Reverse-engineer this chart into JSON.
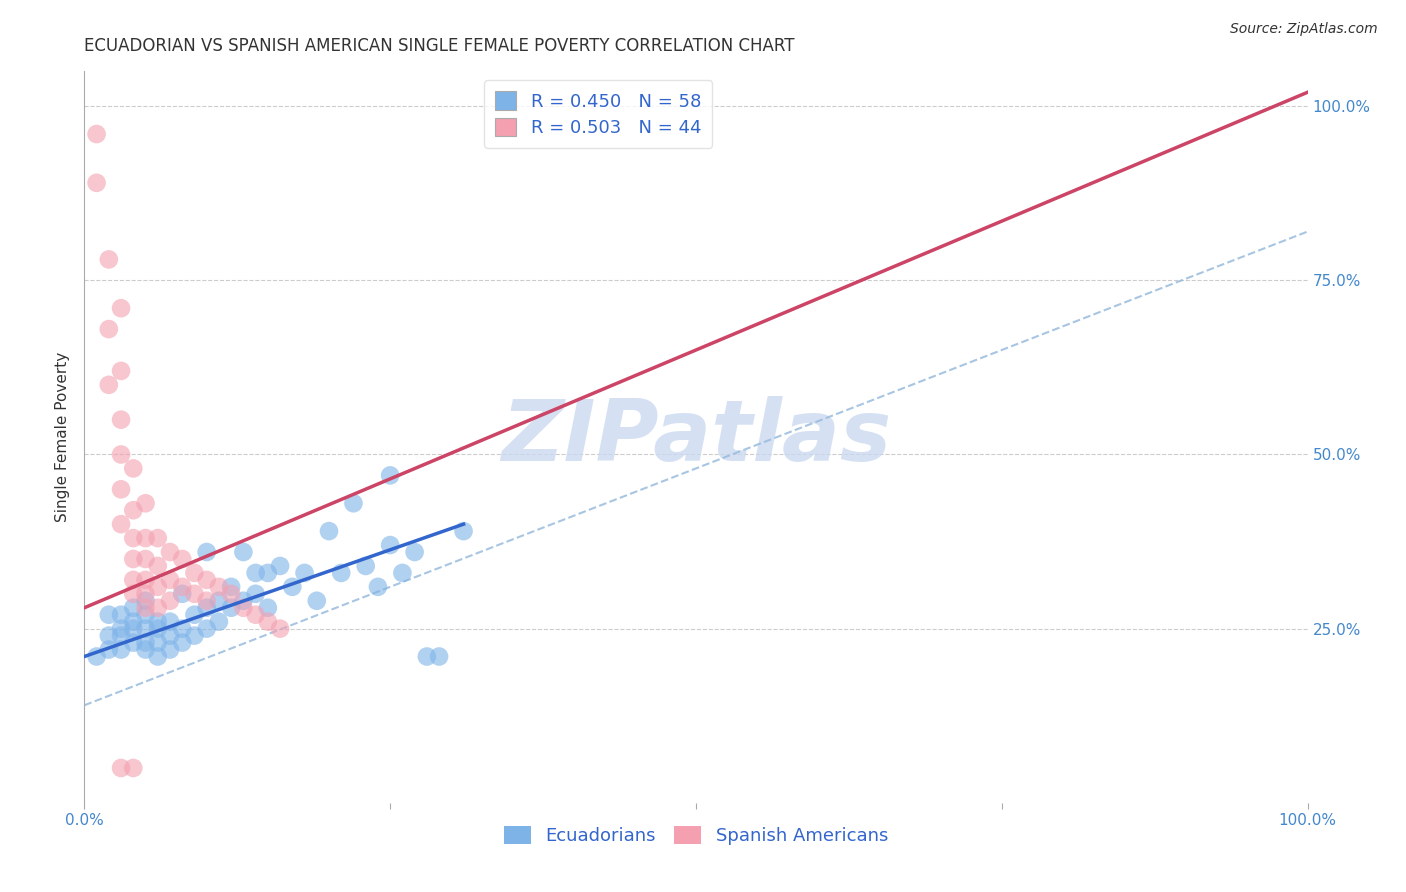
{
  "title": "ECUADORIAN VS SPANISH AMERICAN SINGLE FEMALE POVERTY CORRELATION CHART",
  "source": "Source: ZipAtlas.com",
  "ylabel": "Single Female Poverty",
  "xlim": [
    0,
    1
  ],
  "ylim": [
    0,
    1.05
  ],
  "xticks": [
    0,
    0.25,
    0.5,
    0.75,
    1.0
  ],
  "yticks": [
    0.25,
    0.5,
    0.75,
    1.0
  ],
  "xtick_labels": [
    "0.0%",
    "",
    "",
    "",
    "100.0%"
  ],
  "ytick_labels": [
    "25.0%",
    "50.0%",
    "75.0%",
    "100.0%"
  ],
  "blue_color": "#7EB3E8",
  "pink_color": "#F4A0B0",
  "legend_label_blue": "R = 0.450   N = 58",
  "legend_label_pink": "R = 0.503   N = 44",
  "bottom_legend_blue": "Ecuadorians",
  "bottom_legend_pink": "Spanish Americans",
  "watermark": "ZIPatlas",
  "watermark_color": "#C8D8F0",
  "blue_scatter": [
    [
      0.01,
      0.21
    ],
    [
      0.02,
      0.22
    ],
    [
      0.02,
      0.24
    ],
    [
      0.02,
      0.27
    ],
    [
      0.03,
      0.22
    ],
    [
      0.03,
      0.24
    ],
    [
      0.03,
      0.25
    ],
    [
      0.03,
      0.27
    ],
    [
      0.04,
      0.23
    ],
    [
      0.04,
      0.25
    ],
    [
      0.04,
      0.26
    ],
    [
      0.04,
      0.28
    ],
    [
      0.05,
      0.22
    ],
    [
      0.05,
      0.23
    ],
    [
      0.05,
      0.25
    ],
    [
      0.05,
      0.27
    ],
    [
      0.05,
      0.29
    ],
    [
      0.06,
      0.21
    ],
    [
      0.06,
      0.23
    ],
    [
      0.06,
      0.25
    ],
    [
      0.06,
      0.26
    ],
    [
      0.07,
      0.22
    ],
    [
      0.07,
      0.24
    ],
    [
      0.07,
      0.26
    ],
    [
      0.08,
      0.23
    ],
    [
      0.08,
      0.25
    ],
    [
      0.08,
      0.3
    ],
    [
      0.09,
      0.24
    ],
    [
      0.09,
      0.27
    ],
    [
      0.1,
      0.25
    ],
    [
      0.1,
      0.28
    ],
    [
      0.1,
      0.36
    ],
    [
      0.11,
      0.26
    ],
    [
      0.11,
      0.29
    ],
    [
      0.12,
      0.28
    ],
    [
      0.12,
      0.31
    ],
    [
      0.13,
      0.29
    ],
    [
      0.13,
      0.36
    ],
    [
      0.14,
      0.3
    ],
    [
      0.14,
      0.33
    ],
    [
      0.15,
      0.28
    ],
    [
      0.15,
      0.33
    ],
    [
      0.16,
      0.34
    ],
    [
      0.17,
      0.31
    ],
    [
      0.18,
      0.33
    ],
    [
      0.19,
      0.29
    ],
    [
      0.2,
      0.39
    ],
    [
      0.21,
      0.33
    ],
    [
      0.22,
      0.43
    ],
    [
      0.23,
      0.34
    ],
    [
      0.24,
      0.31
    ],
    [
      0.25,
      0.37
    ],
    [
      0.25,
      0.47
    ],
    [
      0.26,
      0.33
    ],
    [
      0.27,
      0.36
    ],
    [
      0.28,
      0.21
    ],
    [
      0.29,
      0.21
    ],
    [
      0.31,
      0.39
    ]
  ],
  "pink_scatter": [
    [
      0.01,
      0.96
    ],
    [
      0.01,
      0.89
    ],
    [
      0.02,
      0.78
    ],
    [
      0.02,
      0.68
    ],
    [
      0.02,
      0.6
    ],
    [
      0.03,
      0.71
    ],
    [
      0.03,
      0.62
    ],
    [
      0.03,
      0.55
    ],
    [
      0.03,
      0.5
    ],
    [
      0.03,
      0.45
    ],
    [
      0.03,
      0.4
    ],
    [
      0.04,
      0.48
    ],
    [
      0.04,
      0.42
    ],
    [
      0.04,
      0.38
    ],
    [
      0.04,
      0.35
    ],
    [
      0.04,
      0.32
    ],
    [
      0.04,
      0.3
    ],
    [
      0.05,
      0.43
    ],
    [
      0.05,
      0.38
    ],
    [
      0.05,
      0.35
    ],
    [
      0.05,
      0.32
    ],
    [
      0.05,
      0.3
    ],
    [
      0.05,
      0.28
    ],
    [
      0.06,
      0.38
    ],
    [
      0.06,
      0.34
    ],
    [
      0.06,
      0.31
    ],
    [
      0.06,
      0.28
    ],
    [
      0.07,
      0.36
    ],
    [
      0.07,
      0.32
    ],
    [
      0.07,
      0.29
    ],
    [
      0.08,
      0.35
    ],
    [
      0.08,
      0.31
    ],
    [
      0.09,
      0.33
    ],
    [
      0.09,
      0.3
    ],
    [
      0.1,
      0.32
    ],
    [
      0.1,
      0.29
    ],
    [
      0.11,
      0.31
    ],
    [
      0.12,
      0.3
    ],
    [
      0.13,
      0.28
    ],
    [
      0.14,
      0.27
    ],
    [
      0.15,
      0.26
    ],
    [
      0.16,
      0.25
    ],
    [
      0.04,
      0.05
    ],
    [
      0.03,
      0.05
    ]
  ],
  "blue_line_x": [
    0.0,
    0.31
  ],
  "blue_line_y": [
    0.21,
    0.4
  ],
  "pink_line_x": [
    0.0,
    1.0
  ],
  "pink_line_y": [
    0.28,
    1.02
  ],
  "diag_line_x": [
    0.0,
    1.0
  ],
  "diag_line_y": [
    0.14,
    0.82
  ],
  "grid_color": "#CCCCCC",
  "background_color": "#FFFFFF",
  "title_fontsize": 12,
  "axis_label_fontsize": 11,
  "tick_fontsize": 11,
  "legend_fontsize": 13,
  "source_fontsize": 10
}
